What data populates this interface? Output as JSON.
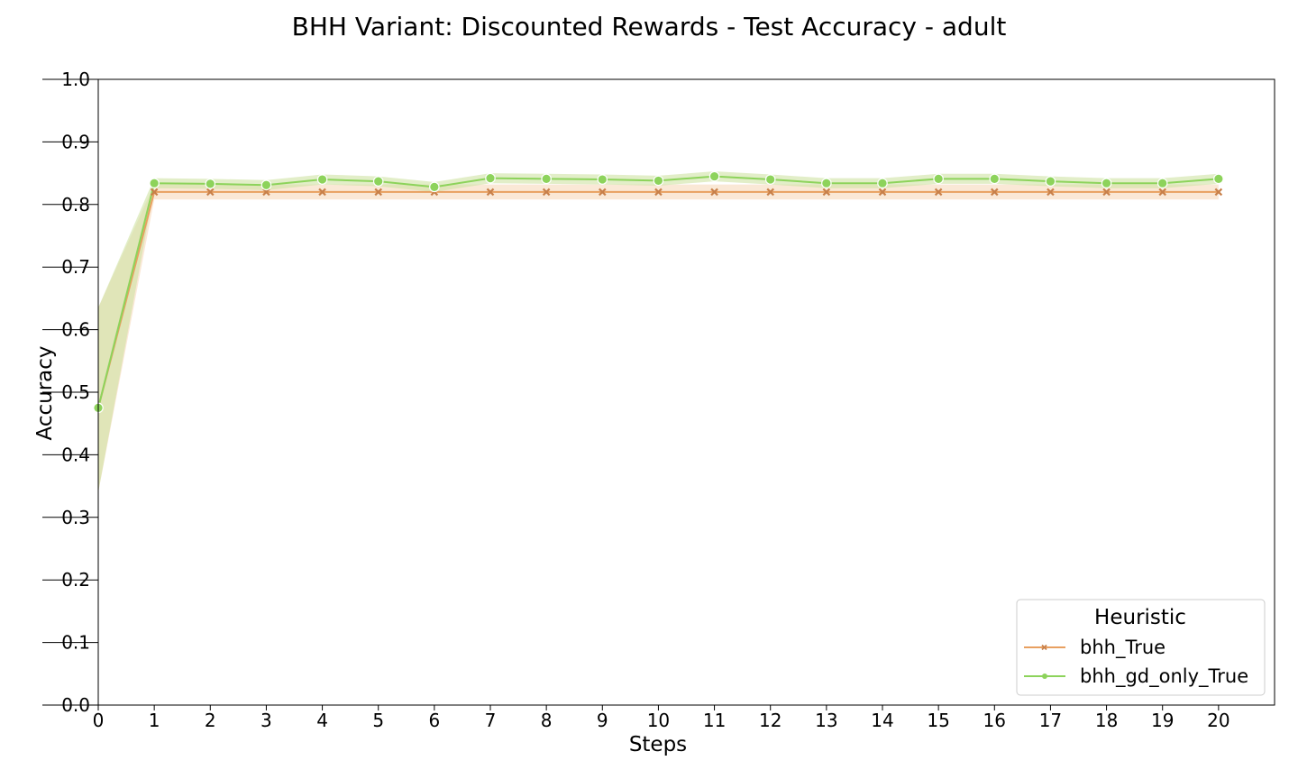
{
  "chart_data": {
    "type": "line",
    "title": "BHH Variant: Discounted Rewards - Test Accuracy - adult",
    "xlabel": "Steps",
    "ylabel": "Accuracy",
    "xlim": [
      0,
      21
    ],
    "ylim": [
      0.0,
      1.0
    ],
    "x": [
      0,
      1,
      2,
      3,
      4,
      5,
      6,
      7,
      8,
      9,
      10,
      11,
      12,
      13,
      14,
      15,
      16,
      17,
      18,
      19,
      20
    ],
    "xticks": [
      "0",
      "1",
      "2",
      "3",
      "4",
      "5",
      "6",
      "7",
      "8",
      "9",
      "10",
      "11",
      "12",
      "13",
      "14",
      "15",
      "16",
      "17",
      "18",
      "19",
      "20"
    ],
    "yticks": [
      "0.0",
      "0.1",
      "0.2",
      "0.3",
      "0.4",
      "0.5",
      "0.6",
      "0.7",
      "0.8",
      "0.9",
      "1.0"
    ],
    "grid": false,
    "legend": {
      "title": "Heuristic",
      "placement": "lower-right"
    },
    "series": [
      {
        "name": "bhh_True",
        "color": "#E8A060",
        "marker": "x",
        "values": [
          0.475,
          0.82,
          0.82,
          0.82,
          0.82,
          0.82,
          0.82,
          0.82,
          0.82,
          0.82,
          0.82,
          0.82,
          0.82,
          0.82,
          0.82,
          0.82,
          0.82,
          0.82,
          0.82,
          0.82,
          0.82
        ],
        "lower": [
          0.34,
          0.808,
          0.808,
          0.808,
          0.808,
          0.808,
          0.808,
          0.808,
          0.808,
          0.808,
          0.808,
          0.808,
          0.808,
          0.808,
          0.808,
          0.808,
          0.808,
          0.808,
          0.808,
          0.808,
          0.808
        ],
        "upper": [
          0.635,
          0.832,
          0.832,
          0.832,
          0.832,
          0.832,
          0.832,
          0.832,
          0.832,
          0.832,
          0.832,
          0.832,
          0.832,
          0.832,
          0.832,
          0.832,
          0.832,
          0.832,
          0.832,
          0.832,
          0.832
        ]
      },
      {
        "name": "bhh_gd_only_True",
        "color": "#8DD35B",
        "marker": "o",
        "values": [
          0.475,
          0.834,
          0.833,
          0.831,
          0.84,
          0.837,
          0.828,
          0.842,
          0.841,
          0.84,
          0.838,
          0.845,
          0.84,
          0.834,
          0.834,
          0.841,
          0.841,
          0.837,
          0.834,
          0.834,
          0.841
        ],
        "lower": [
          0.34,
          0.826,
          0.825,
          0.823,
          0.832,
          0.829,
          0.82,
          0.834,
          0.833,
          0.832,
          0.83,
          0.837,
          0.832,
          0.826,
          0.826,
          0.833,
          0.833,
          0.829,
          0.826,
          0.826,
          0.833
        ],
        "upper": [
          0.635,
          0.842,
          0.841,
          0.839,
          0.848,
          0.845,
          0.836,
          0.85,
          0.849,
          0.848,
          0.846,
          0.853,
          0.848,
          0.842,
          0.842,
          0.849,
          0.849,
          0.845,
          0.842,
          0.842,
          0.849
        ]
      }
    ]
  }
}
